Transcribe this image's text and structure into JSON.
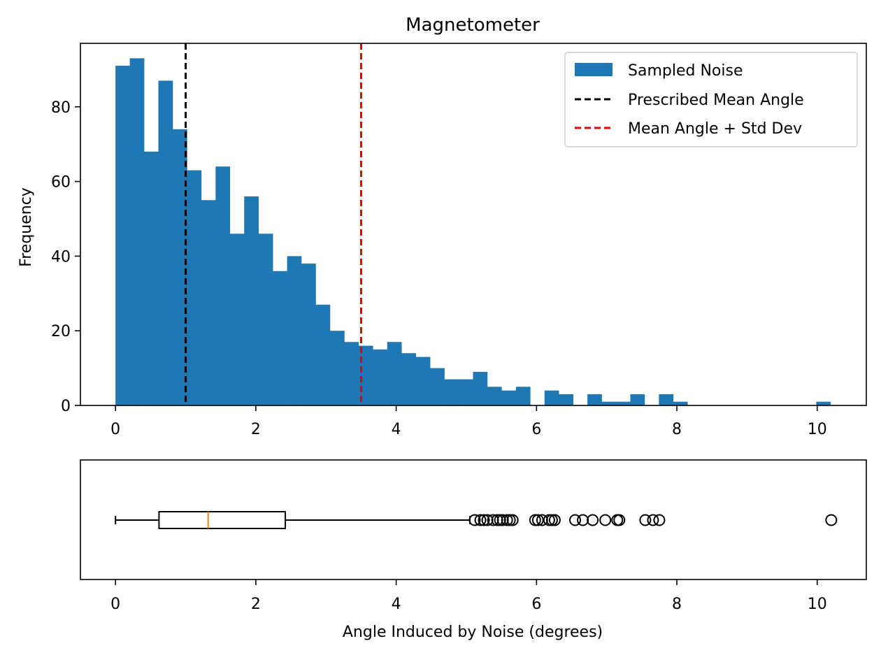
{
  "chart_data": [
    {
      "type": "bar",
      "subtype": "histogram",
      "title": "Magnetometer",
      "xlabel": "",
      "ylabel": "Frequency",
      "xlim": [
        -0.5,
        10.7
      ],
      "ylim": [
        0,
        97
      ],
      "xticks": [
        0,
        2,
        4,
        6,
        8,
        10
      ],
      "yticks": [
        0,
        20,
        40,
        60,
        80
      ],
      "xtick_labels": [
        "0",
        "2",
        "4",
        "6",
        "8",
        "10"
      ],
      "ytick_labels": [
        "0",
        "20",
        "40",
        "60",
        "80"
      ],
      "grid": false,
      "legend_position": "upper right",
      "bin_start": 0.0,
      "bin_width": 0.2038,
      "counts": [
        91,
        93,
        68,
        87,
        74,
        63,
        55,
        64,
        46,
        56,
        46,
        36,
        40,
        38,
        27,
        20,
        17,
        16,
        15,
        17,
        14,
        13,
        10,
        7,
        7,
        9,
        5,
        4,
        5,
        0,
        4,
        3,
        0,
        3,
        1,
        1,
        3,
        0,
        3,
        1,
        0,
        0,
        0,
        0,
        0,
        0,
        0,
        0,
        0,
        1
      ],
      "color": "#1f77b4",
      "vlines": [
        {
          "x": 1.0,
          "color": "#000000",
          "style": "dashed",
          "label": "Prescribed Mean Angle"
        },
        {
          "x": 3.5,
          "color": "#e00000",
          "style": "dashed",
          "label": "Mean Angle + Std Dev"
        }
      ],
      "legend": [
        {
          "label": "Sampled Noise",
          "kind": "patch",
          "color": "#1f77b4"
        },
        {
          "label": "Prescribed Mean Angle",
          "kind": "dashed-line",
          "color": "#000000"
        },
        {
          "label": "Mean Angle + Std Dev",
          "kind": "dashed-line",
          "color": "#e00000"
        }
      ]
    },
    {
      "type": "boxplot",
      "orientation": "horizontal",
      "xlabel": "Angle Induced by Noise (degrees)",
      "ylabel": "",
      "xlim": [
        -0.5,
        10.7
      ],
      "xticks": [
        0,
        2,
        4,
        6,
        8,
        10
      ],
      "xtick_labels": [
        "0",
        "2",
        "4",
        "6",
        "8",
        "10"
      ],
      "whisker_low": 0.0,
      "q1": 0.62,
      "median": 1.32,
      "q3": 2.42,
      "whisker_high": 5.05,
      "median_color": "#ff7f0e",
      "outliers": [
        5.12,
        5.2,
        5.25,
        5.3,
        5.38,
        5.44,
        5.48,
        5.52,
        5.58,
        5.62,
        5.66,
        5.98,
        6.02,
        6.08,
        6.18,
        6.22,
        6.26,
        6.55,
        6.66,
        6.8,
        6.98,
        7.15,
        7.18,
        7.55,
        7.66,
        7.75,
        10.2
      ]
    }
  ]
}
